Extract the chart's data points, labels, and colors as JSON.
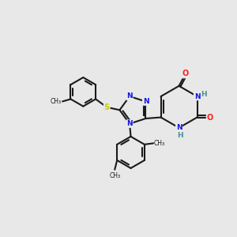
{
  "background_color": "#e8e8e8",
  "bond_color": "#1a1a1a",
  "bond_width": 1.5,
  "atom_colors": {
    "N": "#1414e6",
    "O": "#ff2020",
    "S": "#cccc00",
    "H": "#4a9090",
    "C": "#1a1a1a"
  },
  "fig_width": 3.0,
  "fig_height": 3.0,
  "dpi": 100,
  "xlim": [
    0,
    10
  ],
  "ylim": [
    0,
    10
  ]
}
